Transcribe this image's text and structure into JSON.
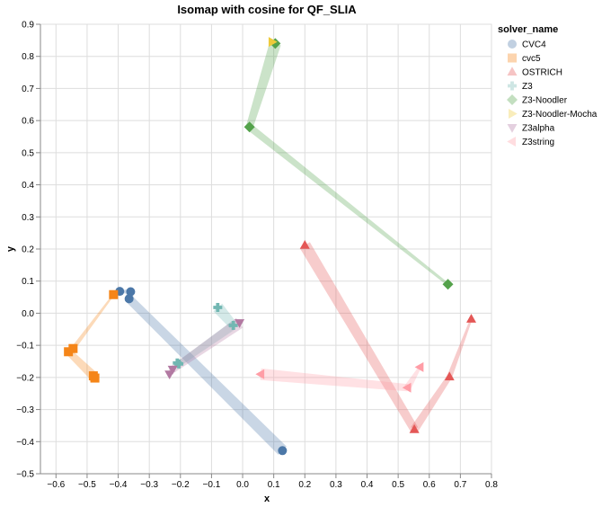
{
  "chart_data": {
    "type": "scatter",
    "title": "Isomap with cosine for QF_SLIA",
    "xlabel": "x",
    "ylabel": "y",
    "xlim": [
      -0.65,
      0.8
    ],
    "ylim": [
      -0.5,
      0.9
    ],
    "x_ticks": [
      -0.6,
      -0.5,
      -0.4,
      -0.3,
      -0.2,
      -0.1,
      0.0,
      0.1,
      0.2,
      0.3,
      0.4,
      0.5,
      0.6,
      0.7,
      0.8
    ],
    "x_tick_labels": [
      "−0.6",
      "−0.5",
      "−0.4",
      "−0.3",
      "−0.2",
      "−0.1",
      "0.0",
      "0.1",
      "0.2",
      "0.3",
      "0.4",
      "0.5",
      "0.6",
      "0.7",
      "0.8"
    ],
    "y_ticks": [
      -0.5,
      -0.4,
      -0.3,
      -0.2,
      -0.1,
      0.0,
      0.1,
      0.2,
      0.3,
      0.4,
      0.5,
      0.6,
      0.7,
      0.8,
      0.9
    ],
    "y_tick_labels": [
      "−0.5",
      "−0.4",
      "−0.3",
      "−0.2",
      "−0.1",
      "0.0",
      "0.1",
      "0.2",
      "0.3",
      "0.4",
      "0.5",
      "0.6",
      "0.7",
      "0.8",
      "0.9"
    ],
    "grid": true,
    "legend_title": "solver_name",
    "legend_position": "right",
    "series": [
      {
        "name": "CVC4",
        "color": "#4c78a8",
        "shape": "circle",
        "points": [
          [
            -0.395,
            0.068
          ],
          [
            -0.36,
            0.067
          ],
          [
            -0.365,
            0.045
          ],
          [
            0.128,
            -0.428
          ]
        ],
        "trail": [
          [
            0.128,
            -0.428
          ],
          [
            -0.365,
            0.045
          ],
          [
            -0.36,
            0.067
          ],
          [
            -0.395,
            0.068
          ]
        ]
      },
      {
        "name": "cvc5",
        "color": "#f58518",
        "shape": "square",
        "points": [
          [
            -0.415,
            0.058
          ],
          [
            -0.545,
            -0.11
          ],
          [
            -0.56,
            -0.12
          ],
          [
            -0.48,
            -0.195
          ],
          [
            -0.475,
            -0.202
          ]
        ],
        "trail": [
          [
            -0.475,
            -0.202
          ],
          [
            -0.48,
            -0.195
          ],
          [
            -0.56,
            -0.12
          ],
          [
            -0.545,
            -0.11
          ],
          [
            -0.415,
            0.058
          ]
        ]
      },
      {
        "name": "OSTRICH",
        "color": "#e45756",
        "shape": "triangle-up",
        "points": [
          [
            0.2,
            0.212
          ],
          [
            0.552,
            -0.362
          ],
          [
            0.665,
            -0.198
          ],
          [
            0.735,
            -0.018
          ]
        ],
        "trail": [
          [
            0.2,
            0.212
          ],
          [
            0.552,
            -0.362
          ],
          [
            0.665,
            -0.198
          ],
          [
            0.735,
            -0.018
          ]
        ]
      },
      {
        "name": "Z3",
        "color": "#72b7b2",
        "shape": "cross",
        "points": [
          [
            -0.08,
            0.018
          ],
          [
            -0.03,
            -0.038
          ],
          [
            -0.205,
            -0.158
          ],
          [
            -0.21,
            -0.155
          ]
        ],
        "trail": [
          [
            -0.08,
            0.018
          ],
          [
            -0.03,
            -0.038
          ],
          [
            -0.205,
            -0.158
          ],
          [
            -0.21,
            -0.155
          ]
        ]
      },
      {
        "name": "Z3-Noodler",
        "color": "#54a24b",
        "shape": "diamond",
        "points": [
          [
            0.105,
            0.84
          ],
          [
            0.022,
            0.58
          ],
          [
            0.66,
            0.09
          ]
        ],
        "trail": [
          [
            0.105,
            0.84
          ],
          [
            0.022,
            0.58
          ],
          [
            0.66,
            0.09
          ]
        ]
      },
      {
        "name": "Z3-Noodler-Mocha",
        "color": "#eeca3b",
        "shape": "triangle-right",
        "points": [
          [
            0.095,
            0.845
          ]
        ],
        "trail": [
          [
            0.095,
            0.845
          ]
        ]
      },
      {
        "name": "Z3alpha",
        "color": "#b279a2",
        "shape": "triangle-down",
        "points": [
          [
            -0.01,
            -0.03
          ],
          [
            -0.225,
            -0.175
          ],
          [
            -0.235,
            -0.19
          ]
        ],
        "trail": [
          [
            -0.01,
            -0.03
          ],
          [
            -0.225,
            -0.175
          ],
          [
            -0.235,
            -0.19
          ]
        ]
      },
      {
        "name": "Z3string",
        "color": "#ff9da6",
        "shape": "triangle-left",
        "points": [
          [
            0.058,
            -0.19
          ],
          [
            0.53,
            -0.232
          ],
          [
            0.57,
            -0.168
          ]
        ],
        "trail": [
          [
            0.058,
            -0.19
          ],
          [
            0.53,
            -0.232
          ],
          [
            0.57,
            -0.168
          ]
        ]
      }
    ]
  }
}
